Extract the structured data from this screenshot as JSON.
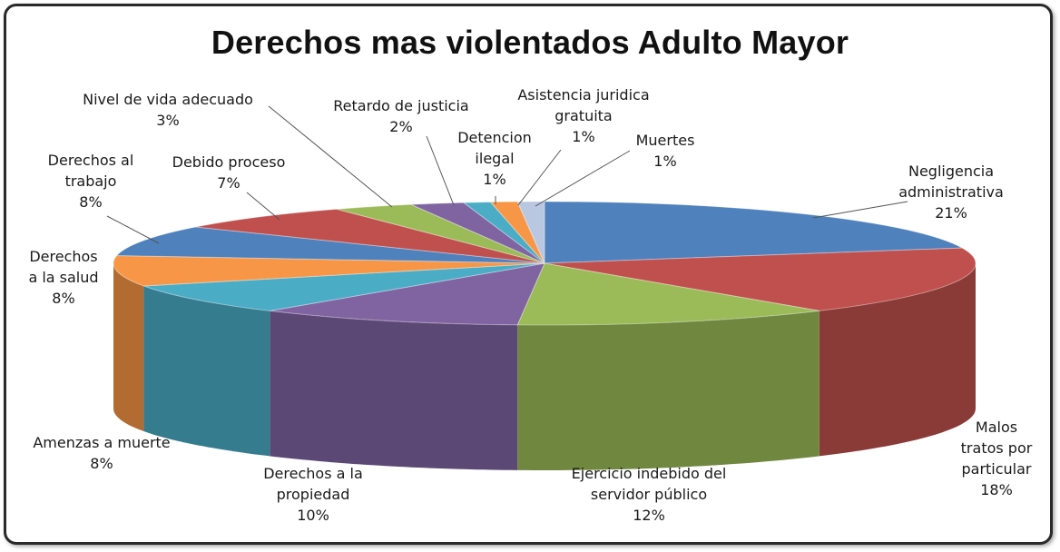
{
  "chart_data": {
    "type": "pie",
    "style": "3d-exploded",
    "title": "Derechos mas violentados Adulto Mayor",
    "slices": [
      {
        "label": "Negligencia administrativa",
        "label_lines": [
          "Negligencia",
          "administrativa"
        ],
        "value": 21,
        "pct_text": "21%",
        "color": "#4f81bd"
      },
      {
        "label": "Malos tratos por particular",
        "label_lines": [
          "Malos",
          "tratos por",
          "particular"
        ],
        "value": 18,
        "pct_text": "18%",
        "color": "#c0504d"
      },
      {
        "label": "Ejercicio indebido del servidor público",
        "label_lines": [
          "Ejercicio indebido del",
          "servidor público"
        ],
        "value": 12,
        "pct_text": "12%",
        "color": "#9bbb59"
      },
      {
        "label": "Derechos a la propiedad",
        "label_lines": [
          "Derechos a la",
          "propiedad"
        ],
        "value": 10,
        "pct_text": "10%",
        "color": "#8064a2"
      },
      {
        "label": "Amenzas a muerte",
        "label_lines": [
          "Amenzas a muerte"
        ],
        "value": 8,
        "pct_text": "8%",
        "color": "#4bacc6"
      },
      {
        "label": "Derechos a la salud",
        "label_lines": [
          "Derechos",
          "a la salud"
        ],
        "value": 8,
        "pct_text": "8%",
        "color": "#f79646"
      },
      {
        "label": "Derechos al trabajo",
        "label_lines": [
          "Derechos al",
          "trabajo"
        ],
        "value": 8,
        "pct_text": "8%",
        "color": "#4f81bd"
      },
      {
        "label": "Debido proceso",
        "label_lines": [
          "Debido proceso"
        ],
        "value": 7,
        "pct_text": "7%",
        "color": "#c0504d"
      },
      {
        "label": "Nivel de vida adecuado",
        "label_lines": [
          "Nivel de vida adecuado"
        ],
        "value": 3,
        "pct_text": "3%",
        "color": "#9bbb59"
      },
      {
        "label": "Retardo de justicia",
        "label_lines": [
          "Retardo de justicia"
        ],
        "value": 2,
        "pct_text": "2%",
        "color": "#8064a2"
      },
      {
        "label": "Detencion ilegal",
        "label_lines": [
          "Detencion",
          "ilegal"
        ],
        "value": 1,
        "pct_text": "1%",
        "color": "#4bacc6"
      },
      {
        "label": "Asistencia juridica gratuita",
        "label_lines": [
          "Asistencia juridica",
          "gratuita"
        ],
        "value": 1,
        "pct_text": "1%",
        "color": "#f79646"
      },
      {
        "label": "Muertes",
        "label_lines": [
          "Muertes"
        ],
        "value": 1,
        "pct_text": "1%",
        "color": "#b9c8e0"
      }
    ]
  }
}
